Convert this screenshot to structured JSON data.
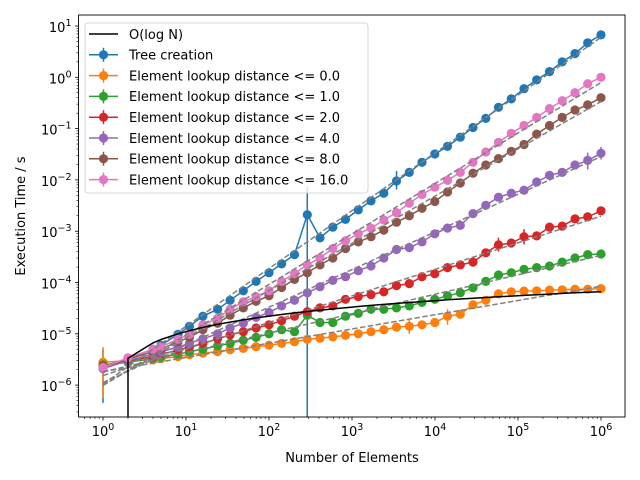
{
  "chart_data": {
    "type": "line",
    "title": "",
    "xlabel": "Number of Elements",
    "ylabel": "Execution Time / s",
    "xscale": "log",
    "yscale": "log",
    "xlim": [
      0.5,
      1950000
    ],
    "ylim": [
      2.4e-07,
      16.4
    ],
    "grid": false,
    "legend_position": "top-left",
    "x_ticks": [
      1,
      10,
      100,
      1000,
      10000,
      100000,
      1000000
    ],
    "x_tick_labels": [
      "10^0",
      "10^1",
      "10^2",
      "10^3",
      "10^4",
      "10^5",
      "10^6"
    ],
    "y_ticks": [
      1e-06,
      1e-05,
      0.0001,
      0.001,
      0.01,
      0.1,
      1,
      10
    ],
    "y_tick_labels": [
      "10^−6",
      "10^−5",
      "10^−4",
      "10^−3",
      "10^−2",
      "10^−1",
      "10^0",
      "10^1"
    ],
    "x": [
      1,
      2,
      4,
      5,
      8,
      11,
      16,
      24,
      34,
      49,
      70,
      100,
      142,
      203,
      289,
      412,
      587,
      836,
      1190,
      1696,
      2416,
      3440,
      4900,
      6978,
      9938,
      14152,
      20155,
      28709,
      40885,
      58232,
      82929,
      118107,
      168196,
      239536,
      341132,
      485820,
      691831,
      1000000
    ],
    "reference": {
      "name": "O(log N)",
      "color": "#000000",
      "values": [
        0,
        3.33e-06,
        6.65e-06,
        7.73e-06,
        9.98e-06,
        1.15e-05,
        1.33e-05,
        1.53e-05,
        1.69e-05,
        1.87e-05,
        2.04e-05,
        2.21e-05,
        2.38e-05,
        2.55e-05,
        2.72e-05,
        2.89e-05,
        3.06e-05,
        3.23e-05,
        3.4e-05,
        3.57e-05,
        3.74e-05,
        3.91e-05,
        4.08e-05,
        4.25e-05,
        4.42e-05,
        4.59e-05,
        4.76e-05,
        4.93e-05,
        5.1e-05,
        5.27e-05,
        5.44e-05,
        5.61e-05,
        5.78e-05,
        5.95e-05,
        6.12e-05,
        6.29e-05,
        6.46e-05,
        6.63e-05
      ]
    },
    "fit_line_style": {
      "color": "#808080",
      "dash": "dashed"
    },
    "series": [
      {
        "name": "Tree creation",
        "color": "#1f77b4",
        "values": [
          2.3e-06,
          3.3e-06,
          5e-06,
          6e-06,
          9.8e-06,
          1.4e-05,
          2.2e-05,
          3e-05,
          4.5e-05,
          6.9e-05,
          0.000105,
          0.000155,
          0.00023,
          0.00035,
          0.0021,
          0.00074,
          0.0012,
          0.0017,
          0.0026,
          0.0039,
          0.0055,
          0.0095,
          0.014,
          0.022,
          0.032,
          0.045,
          0.068,
          0.105,
          0.158,
          0.26,
          0.38,
          0.6,
          0.89,
          1.29,
          2.0,
          2.9,
          4.7,
          6.7
        ]
      },
      {
        "name": "Element lookup distance <= 0.0",
        "color": "#ff7f0e",
        "values": [
          2.8e-06,
          3e-06,
          3.1e-06,
          3.3e-06,
          3.6e-06,
          3.9e-06,
          4.2e-06,
          4.5e-06,
          4.9e-06,
          5.2e-06,
          5.6e-06,
          6e-06,
          6.5e-06,
          7e-06,
          7.8e-06,
          8.2e-06,
          8.7e-06,
          9.3e-06,
          1e-05,
          1.1e-05,
          1.2e-05,
          1.35e-05,
          1.4e-05,
          1.5e-05,
          1.66e-05,
          2.2e-05,
          2.4e-05,
          3.7e-05,
          4.5e-05,
          6e-05,
          6.6e-05,
          6.8e-05,
          6.9e-05,
          7.1e-05,
          7.2e-05,
          7.4e-05,
          7.4e-05,
          7.6e-05
        ]
      },
      {
        "name": "Element lookup distance <= 1.0",
        "color": "#2ca02c",
        "values": [
          2.5e-06,
          2.8e-06,
          3.3e-06,
          3.6e-06,
          4e-06,
          4.5e-06,
          5e-06,
          5.8e-06,
          6.5e-06,
          7.5e-06,
          8.5e-06,
          1e-05,
          1.2e-05,
          1.1e-05,
          2.3e-05,
          1.66e-05,
          1.66e-05,
          2.2e-05,
          2.5e-05,
          3e-05,
          3e-05,
          3.2e-05,
          3.5e-05,
          4.1e-05,
          4.7e-05,
          5.5e-05,
          6.3e-05,
          7.9e-05,
          0.000105,
          0.00014,
          0.000155,
          0.00018,
          0.000195,
          0.00021,
          0.00025,
          0.0003,
          0.00035,
          0.00036
        ]
      },
      {
        "name": "Element lookup distance <= 2.0",
        "color": "#d62728",
        "values": [
          2.3e-06,
          3e-06,
          3.6e-06,
          4e-06,
          4.8e-06,
          5.5e-06,
          6.5e-06,
          8e-06,
          9.5e-06,
          1.1e-05,
          1.3e-05,
          1.5e-05,
          1.8e-05,
          2.2e-05,
          2.7e-05,
          3.2e-05,
          3.5e-05,
          4.7e-05,
          5.3e-05,
          5.8e-05,
          6.6e-05,
          8.7e-05,
          9.5e-05,
          0.00013,
          0.000148,
          0.000195,
          0.00022,
          0.00025,
          0.00038,
          0.00054,
          0.00059,
          0.00078,
          0.00081,
          0.0012,
          0.00126,
          0.00174,
          0.0019,
          0.0025
        ]
      },
      {
        "name": "Element lookup distance <= 4.0",
        "color": "#9467bd",
        "values": [
          2.1e-06,
          3e-06,
          4e-06,
          4.5e-06,
          5.5e-06,
          6.5e-06,
          8e-06,
          1e-05,
          1.3e-05,
          1.6e-05,
          2.1e-05,
          2.6e-05,
          3.5e-05,
          4.5e-05,
          6.3e-05,
          8.3e-05,
          0.00011,
          0.00013,
          0.00017,
          0.00021,
          0.0003,
          0.00044,
          0.00048,
          0.00062,
          0.00089,
          0.00115,
          0.0013,
          0.0022,
          0.0032,
          0.0046,
          0.0055,
          0.0063,
          0.0091,
          0.0123,
          0.014,
          0.0195,
          0.024,
          0.033
        ]
      },
      {
        "name": "Element lookup distance <= 8.0",
        "color": "#8c564b",
        "values": [
          2.2e-06,
          3.2e-06,
          4.5e-06,
          5e-06,
          7e-06,
          8.5e-06,
          1.2e-05,
          1.6e-05,
          2.3e-05,
          3.2e-05,
          4.3e-05,
          5.5e-05,
          8e-05,
          0.000115,
          0.000155,
          0.00022,
          0.0003,
          0.00046,
          0.00062,
          0.00078,
          0.00105,
          0.0015,
          0.002,
          0.0028,
          0.0038,
          0.0058,
          0.0087,
          0.0135,
          0.0195,
          0.026,
          0.036,
          0.049,
          0.078,
          0.115,
          0.165,
          0.23,
          0.29,
          0.4
        ]
      },
      {
        "name": "Element lookup distance <= 16.0",
        "color": "#e377c2",
        "values": [
          2.2e-06,
          3.4e-06,
          5e-06,
          5.6e-06,
          7.8e-06,
          9.8e-06,
          1.5e-05,
          2e-05,
          3e-05,
          4.2e-05,
          5.3e-05,
          6.9e-05,
          0.000105,
          0.00015,
          0.00022,
          0.0003,
          0.00046,
          0.00065,
          0.00089,
          0.00115,
          0.00165,
          0.0023,
          0.0035,
          0.0052,
          0.0072,
          0.0098,
          0.014,
          0.022,
          0.035,
          0.054,
          0.081,
          0.115,
          0.165,
          0.245,
          0.35,
          0.5,
          0.75,
          1.0
        ]
      }
    ],
    "error_bars": [
      {
        "series": 0,
        "index": 0,
        "low": 4.5e-07,
        "high": 5e-06
      },
      {
        "series": 1,
        "index": 0,
        "low": 5.6e-07,
        "high": 5.5e-06
      },
      {
        "series": 0,
        "index": 14,
        "low": 1e-08,
        "high": 0.0072
      },
      {
        "series": 0,
        "index": 21,
        "low": 0.0065,
        "high": 0.015
      },
      {
        "series": 1,
        "index": 25,
        "low": 1.5e-05,
        "high": 3e-05
      },
      {
        "series": 1,
        "index": 22,
        "low": 1e-05,
        "high": 1.9e-05
      },
      {
        "series": 3,
        "index": 29,
        "low": 0.0004,
        "high": 0.00075
      },
      {
        "series": 3,
        "index": 31,
        "low": 0.00055,
        "high": 0.0011
      },
      {
        "series": 4,
        "index": 36,
        "low": 0.016,
        "high": 0.034
      },
      {
        "series": 4,
        "index": 37,
        "low": 0.025,
        "high": 0.044
      }
    ]
  }
}
